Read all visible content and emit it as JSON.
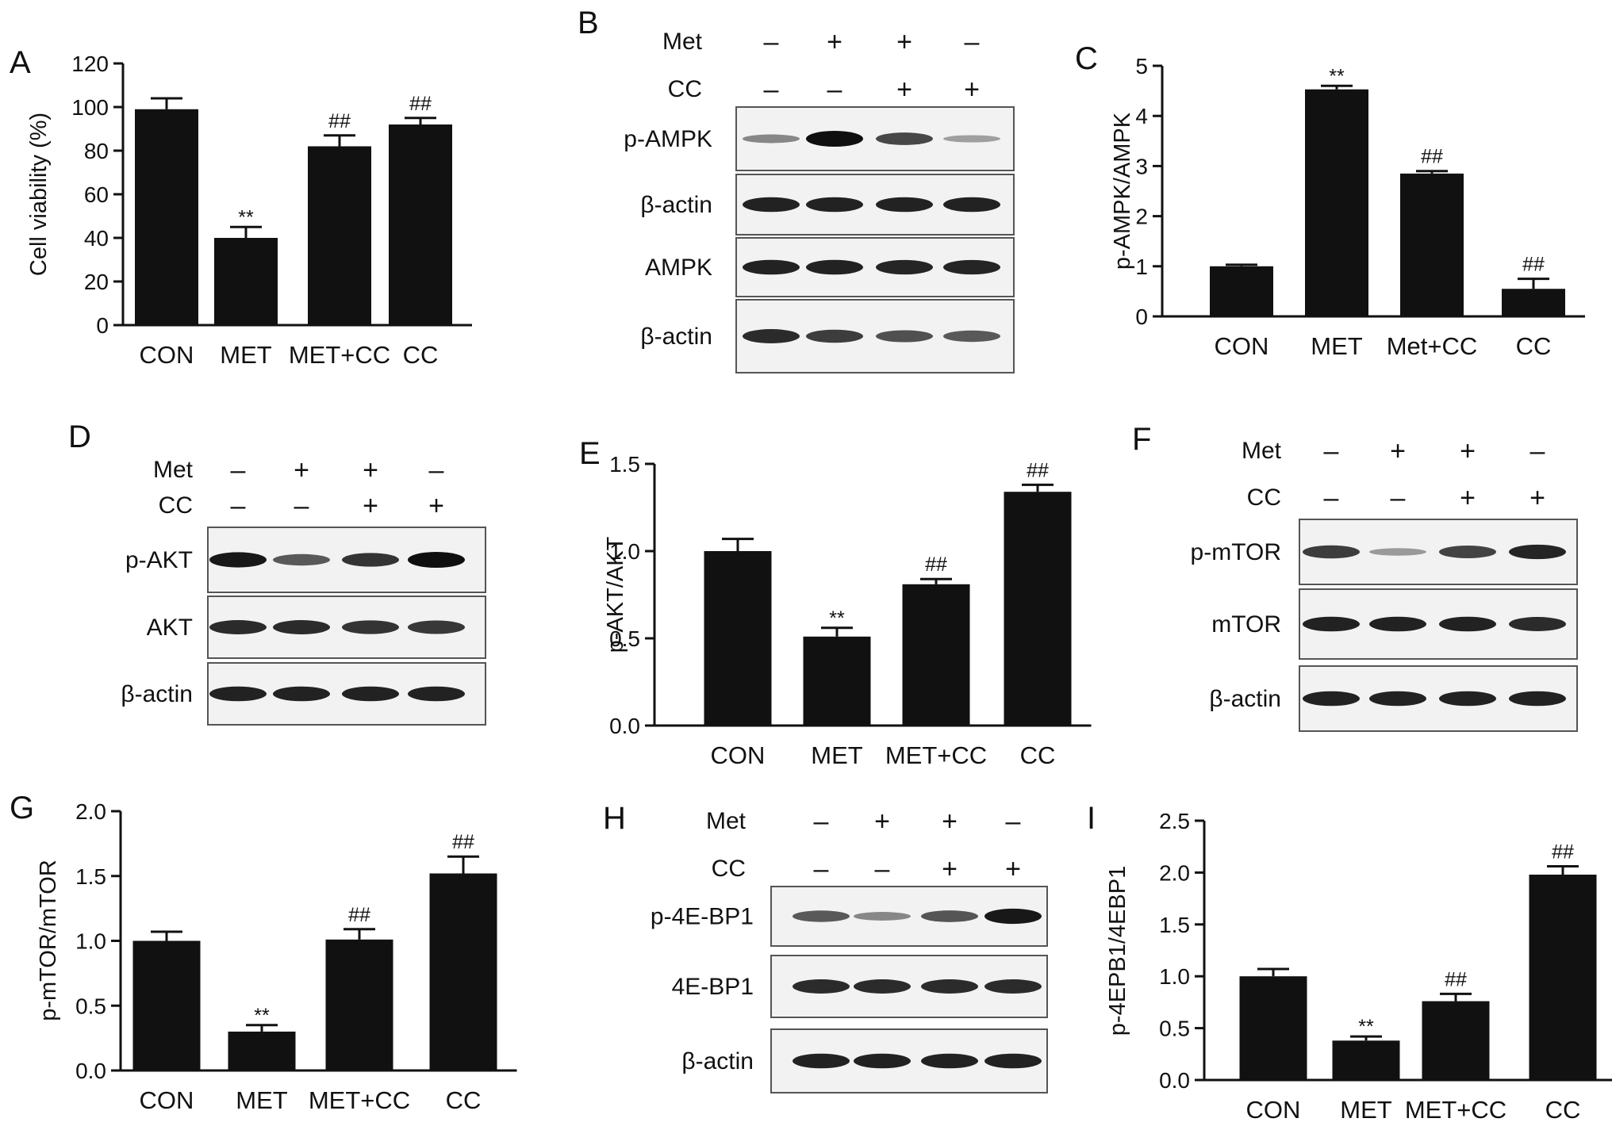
{
  "panel_letters": [
    "A",
    "B",
    "C",
    "D",
    "E",
    "F",
    "G",
    "H",
    "I"
  ],
  "chart_data": [
    {
      "panel": "A",
      "type": "bar",
      "categories": [
        "CON",
        "MET",
        "MET+CC",
        "CC"
      ],
      "values": [
        99,
        40,
        82,
        92
      ],
      "errors": [
        5,
        5,
        5,
        3
      ],
      "annotations": [
        "",
        "**",
        "##",
        "##"
      ],
      "ylabel": "Cell viability (%)",
      "ylim": [
        0,
        120
      ],
      "yticks": [
        "0",
        "20",
        "40",
        "60",
        "80",
        "100",
        "120"
      ]
    },
    {
      "panel": "C",
      "type": "bar",
      "categories": [
        "CON",
        "MET",
        "Met+CC",
        "CC"
      ],
      "values": [
        1.0,
        4.53,
        2.85,
        0.55
      ],
      "errors": [
        0.03,
        0.07,
        0.05,
        0.2
      ],
      "annotations": [
        "",
        "**",
        "##",
        "##"
      ],
      "ylabel": "p-AMPK/AMPK",
      "ylim": [
        0,
        5
      ],
      "yticks": [
        "0",
        "1",
        "2",
        "3",
        "4",
        "5"
      ]
    },
    {
      "panel": "E",
      "type": "bar",
      "categories": [
        "CON",
        "MET",
        "MET+CC",
        "CC"
      ],
      "values": [
        1.0,
        0.51,
        0.81,
        1.34
      ],
      "errors": [
        0.07,
        0.05,
        0.03,
        0.04
      ],
      "annotations": [
        "",
        "**",
        "##",
        "##"
      ],
      "ylabel": "p-AKT/AKT",
      "ylim": [
        0,
        1.5
      ],
      "yticks": [
        "0.0",
        "0.5",
        "1.0",
        "1.5"
      ]
    },
    {
      "panel": "G",
      "type": "bar",
      "categories": [
        "CON",
        "MET",
        "MET+CC",
        "CC"
      ],
      "values": [
        1.0,
        0.3,
        1.01,
        1.52
      ],
      "errors": [
        0.07,
        0.05,
        0.08,
        0.13
      ],
      "annotations": [
        "",
        "**",
        "##",
        "##"
      ],
      "ylabel": "p-mTOR/mTOR",
      "ylim": [
        0,
        2.0
      ],
      "yticks": [
        "0.0",
        "0.5",
        "1.0",
        "1.5",
        "2.0"
      ]
    },
    {
      "panel": "I",
      "type": "bar",
      "categories": [
        "CON",
        "MET",
        "MET+CC",
        "CC"
      ],
      "values": [
        1.0,
        0.38,
        0.76,
        1.98
      ],
      "errors": [
        0.07,
        0.04,
        0.07,
        0.08
      ],
      "annotations": [
        "",
        "**",
        "##",
        "##"
      ],
      "ylabel": "p-4EPB1/4EBP1",
      "ylim": [
        0,
        2.5
      ],
      "yticks": [
        "0.0",
        "0.5",
        "1.0",
        "1.5",
        "2.0",
        "2.5"
      ]
    }
  ],
  "blots": [
    {
      "panel": "B",
      "treatments": [
        {
          "label": "Met",
          "signs": [
            "–",
            "+",
            "+",
            "–"
          ]
        },
        {
          "label": "CC",
          "signs": [
            "–",
            "–",
            "+",
            "+"
          ]
        }
      ],
      "rows": [
        {
          "label": "p-AMPK",
          "intensity": [
            0.35,
            1.0,
            0.7,
            0.22
          ]
        },
        {
          "label": "β-actin",
          "intensity": [
            0.9,
            0.9,
            0.9,
            0.9
          ]
        },
        {
          "label": "AMPK",
          "intensity": [
            0.9,
            0.9,
            0.88,
            0.88
          ]
        },
        {
          "label": "β-actin",
          "intensity": [
            0.85,
            0.75,
            0.65,
            0.6
          ]
        }
      ]
    },
    {
      "panel": "D",
      "treatments": [
        {
          "label": "Met",
          "signs": [
            "–",
            "+",
            "+",
            "–"
          ]
        },
        {
          "label": "CC",
          "signs": [
            "–",
            "–",
            "+",
            "+"
          ]
        }
      ],
      "rows": [
        {
          "label": "p-AKT",
          "intensity": [
            0.95,
            0.6,
            0.8,
            1.0
          ]
        },
        {
          "label": "AKT",
          "intensity": [
            0.85,
            0.85,
            0.8,
            0.78
          ]
        },
        {
          "label": "β-actin",
          "intensity": [
            0.9,
            0.9,
            0.9,
            0.9
          ]
        }
      ]
    },
    {
      "panel": "F",
      "treatments": [
        {
          "label": "Met",
          "signs": [
            "–",
            "+",
            "+",
            "–"
          ]
        },
        {
          "label": "CC",
          "signs": [
            "–",
            "–",
            "+",
            "+"
          ]
        }
      ],
      "rows": [
        {
          "label": "p-mTOR",
          "intensity": [
            0.75,
            0.25,
            0.72,
            0.88
          ]
        },
        {
          "label": "mTOR",
          "intensity": [
            0.9,
            0.9,
            0.9,
            0.85
          ]
        },
        {
          "label": "β-actin",
          "intensity": [
            0.9,
            0.9,
            0.9,
            0.9
          ]
        }
      ]
    },
    {
      "panel": "H",
      "treatments": [
        {
          "label": "Met",
          "signs": [
            "–",
            "+",
            "+",
            "–"
          ]
        },
        {
          "label": "CC",
          "signs": [
            "–",
            "–",
            "+",
            "+"
          ]
        }
      ],
      "rows": [
        {
          "label": "p-4E-BP1",
          "intensity": [
            0.6,
            0.35,
            0.62,
            0.95
          ]
        },
        {
          "label": "4E-BP1",
          "intensity": [
            0.85,
            0.85,
            0.85,
            0.85
          ]
        },
        {
          "label": "β-actin",
          "intensity": [
            0.9,
            0.9,
            0.9,
            0.9
          ]
        }
      ]
    }
  ]
}
